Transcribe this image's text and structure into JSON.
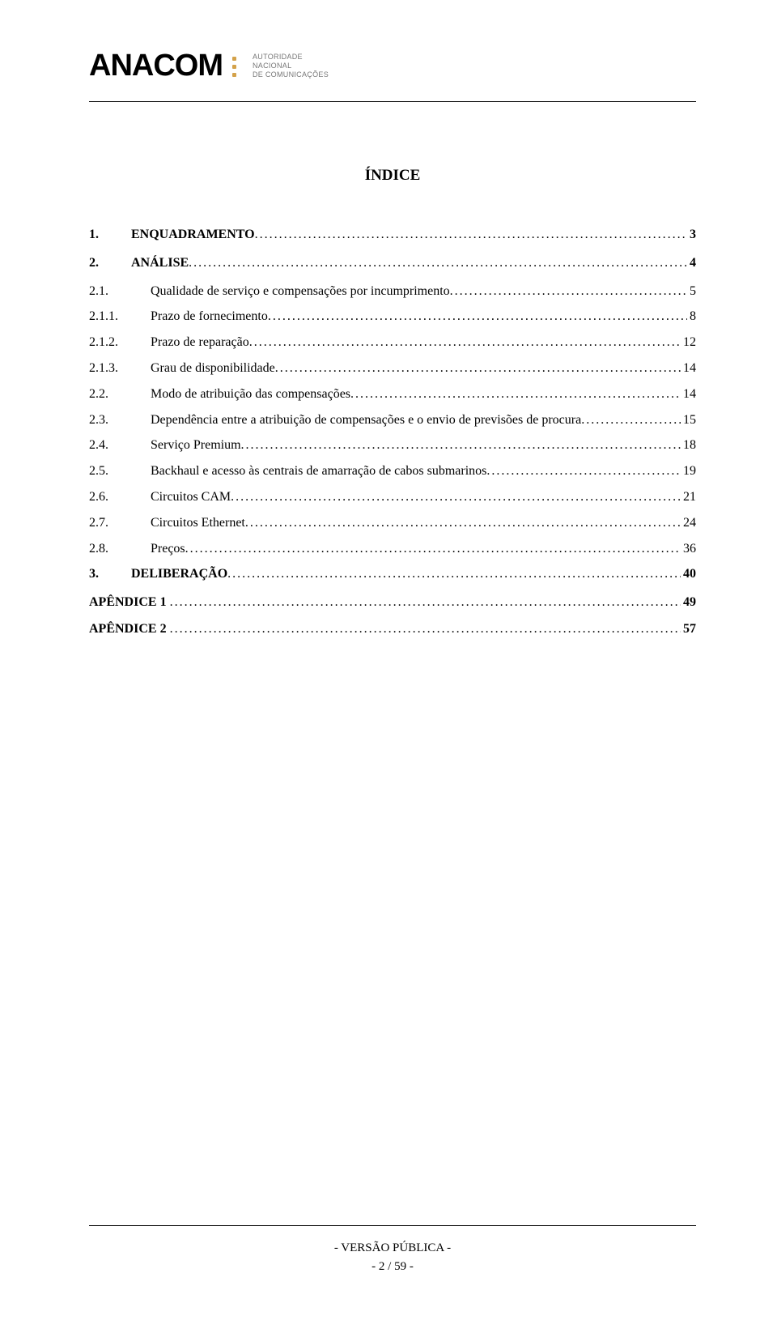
{
  "header": {
    "logo_text": "ANACOM",
    "subtitle_line1": "AUTORIDADE",
    "subtitle_line2": "NACIONAL",
    "subtitle_line3": "DE COMUNICAÇÕES",
    "dot_color": "#d4a24a"
  },
  "title": "ÍNDICE",
  "toc": [
    {
      "level": 1,
      "num": "1.",
      "label": "ENQUADRAMENTO",
      "page": "3"
    },
    {
      "level": 1,
      "num": "2.",
      "label": "ANÁLISE",
      "page": "4"
    },
    {
      "level": 2,
      "num": "2.1.",
      "label": "Qualidade de serviço e compensações por incumprimento",
      "page": "5"
    },
    {
      "level": 3,
      "num": "2.1.1.",
      "label": "Prazo de fornecimento",
      "page": "8"
    },
    {
      "level": 3,
      "num": "2.1.2.",
      "label": "Prazo de reparação",
      "page": "12"
    },
    {
      "level": 3,
      "num": "2.1.3.",
      "label": "Grau de disponibilidade",
      "page": "14"
    },
    {
      "level": 2,
      "num": "2.2.",
      "label": "Modo de atribuição das compensações",
      "page": "14"
    },
    {
      "level": 2,
      "num": "2.3.",
      "label": "Dependência entre a atribuição de compensações e o envio de previsões de procura",
      "page": "15"
    },
    {
      "level": 2,
      "num": "2.4.",
      "label": "Serviço Premium",
      "page": "18"
    },
    {
      "level": 2,
      "num": "2.5.",
      "label": "Backhaul e acesso às centrais de amarração de cabos submarinos",
      "page": "19"
    },
    {
      "level": 2,
      "num": "2.6.",
      "label": "Circuitos CAM",
      "page": "21"
    },
    {
      "level": 2,
      "num": "2.7.",
      "label": "Circuitos Ethernet",
      "page": "24"
    },
    {
      "level": 2,
      "num": "2.8.",
      "label": "Preços",
      "page": "36"
    },
    {
      "level": 1,
      "num": "3.",
      "label": "DELIBERAÇÃO",
      "page": "40"
    },
    {
      "level": 0,
      "num": "APÊNDICE 1",
      "label": "",
      "page": "49"
    },
    {
      "level": 0,
      "num": "APÊNDICE 2",
      "label": "",
      "page": "57"
    }
  ],
  "footer": {
    "version": "- VERSÃO PÚBLICA -",
    "pager": "- 2 / 59 -"
  },
  "colors": {
    "text": "#000000",
    "background": "#ffffff",
    "rule": "#000000"
  },
  "typography": {
    "body_font": "Times New Roman",
    "body_size_pt": 12,
    "title_size_pt": 14
  }
}
